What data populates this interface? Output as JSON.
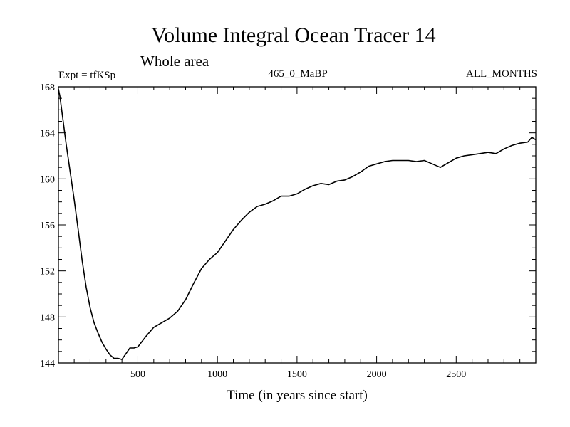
{
  "chart_data": {
    "type": "line",
    "title": "Volume Integral Ocean Tracer 14",
    "subtitle": "Whole area",
    "experiment_label": "Expt = tfKSp",
    "center_label": "465_0_MaBP",
    "right_label": "ALL_MONTHS",
    "xlabel": "Time (in years since start)",
    "ylabel": "",
    "xlim": [
      1,
      3000
    ],
    "ylim": [
      144,
      168
    ],
    "xticks": [
      500,
      1000,
      1500,
      2000,
      2500
    ],
    "xtick_labels": [
      "500",
      "1000",
      "1500",
      "2000",
      "2500"
    ],
    "yticks": [
      144,
      148,
      152,
      156,
      160,
      164,
      168
    ],
    "ytick_labels": [
      "144",
      "148",
      "152",
      "156",
      "160",
      "164",
      "168"
    ],
    "grid": false,
    "legend": "none",
    "series": [
      {
        "name": "Expt = tfKSp",
        "color": "#000000",
        "x": [
          1,
          10,
          25,
          50,
          75,
          100,
          125,
          150,
          175,
          200,
          225,
          250,
          275,
          300,
          325,
          350,
          375,
          400,
          425,
          450,
          475,
          500,
          550,
          600,
          650,
          700,
          750,
          800,
          850,
          900,
          950,
          1000,
          1050,
          1100,
          1150,
          1200,
          1250,
          1300,
          1350,
          1400,
          1450,
          1500,
          1550,
          1600,
          1650,
          1700,
          1750,
          1800,
          1850,
          1900,
          1950,
          2000,
          2050,
          2100,
          2150,
          2200,
          2250,
          2300,
          2350,
          2400,
          2450,
          2500,
          2550,
          2600,
          2650,
          2700,
          2750,
          2800,
          2850,
          2900,
          2950,
          2975,
          3000
        ],
        "values": [
          167.8,
          167.2,
          165.6,
          163.0,
          160.6,
          158.2,
          155.6,
          152.9,
          150.6,
          148.8,
          147.5,
          146.6,
          145.8,
          145.2,
          144.7,
          144.4,
          144.4,
          144.3,
          144.8,
          145.3,
          145.3,
          145.4,
          146.3,
          147.1,
          147.5,
          147.9,
          148.5,
          149.5,
          150.9,
          152.2,
          153.0,
          153.6,
          154.6,
          155.6,
          156.4,
          157.1,
          157.6,
          157.8,
          158.1,
          158.5,
          158.5,
          158.7,
          159.1,
          159.4,
          159.6,
          159.5,
          159.8,
          159.9,
          160.2,
          160.6,
          161.1,
          161.3,
          161.5,
          161.6,
          161.6,
          161.6,
          161.5,
          161.6,
          161.3,
          161.0,
          161.4,
          161.8,
          162.0,
          162.1,
          162.2,
          162.3,
          162.2,
          162.6,
          162.9,
          163.1,
          163.2,
          163.6,
          163.4
        ]
      }
    ]
  }
}
